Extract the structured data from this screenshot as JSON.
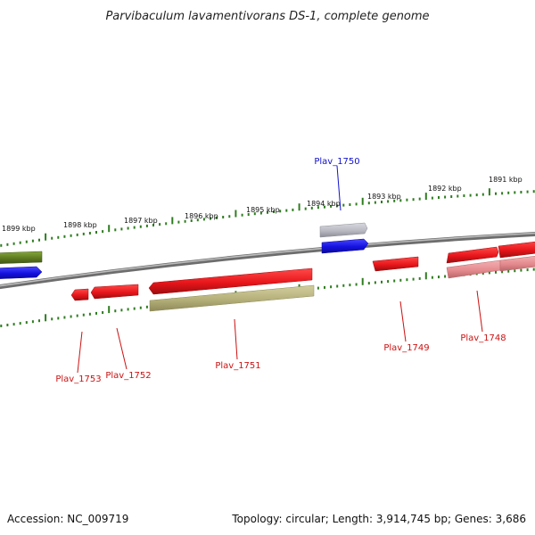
{
  "title": "Parvibaculum lavamentivorans DS-1, complete genome",
  "footer": {
    "accession": "Accession: NC_009719",
    "summary": "Topology: circular; Length: 3,914,745 bp; Genes: 3,686"
  },
  "colors": {
    "backbone": "#8a8a8a",
    "tick": "#2e7d1f",
    "gene_red": "#e8161b",
    "gene_pink": "#e58b8f",
    "gene_blue": "#1411e0",
    "gene_gray": "#b9b9c2",
    "gene_olive": "#5d7a20",
    "gene_khaki": "#b5b07a",
    "label_red": "#cc1111",
    "label_blue": "#1111cc"
  },
  "kbp_labels": [
    "1899 kbp",
    "1898 kbp",
    "1897 kbp",
    "1896 kbp",
    "1895 kbp",
    "1894 kbp",
    "1893 kbp",
    "1892 kbp",
    "1891 kbp"
  ],
  "gene_labels": [
    {
      "id": "Plav_1750",
      "color": "blue"
    },
    {
      "id": "Plav_1753",
      "color": "red"
    },
    {
      "id": "Plav_1752",
      "color": "red"
    },
    {
      "id": "Plav_1751",
      "color": "red"
    },
    {
      "id": "Plav_1749",
      "color": "red"
    },
    {
      "id": "Plav_1748",
      "color": "red"
    }
  ]
}
